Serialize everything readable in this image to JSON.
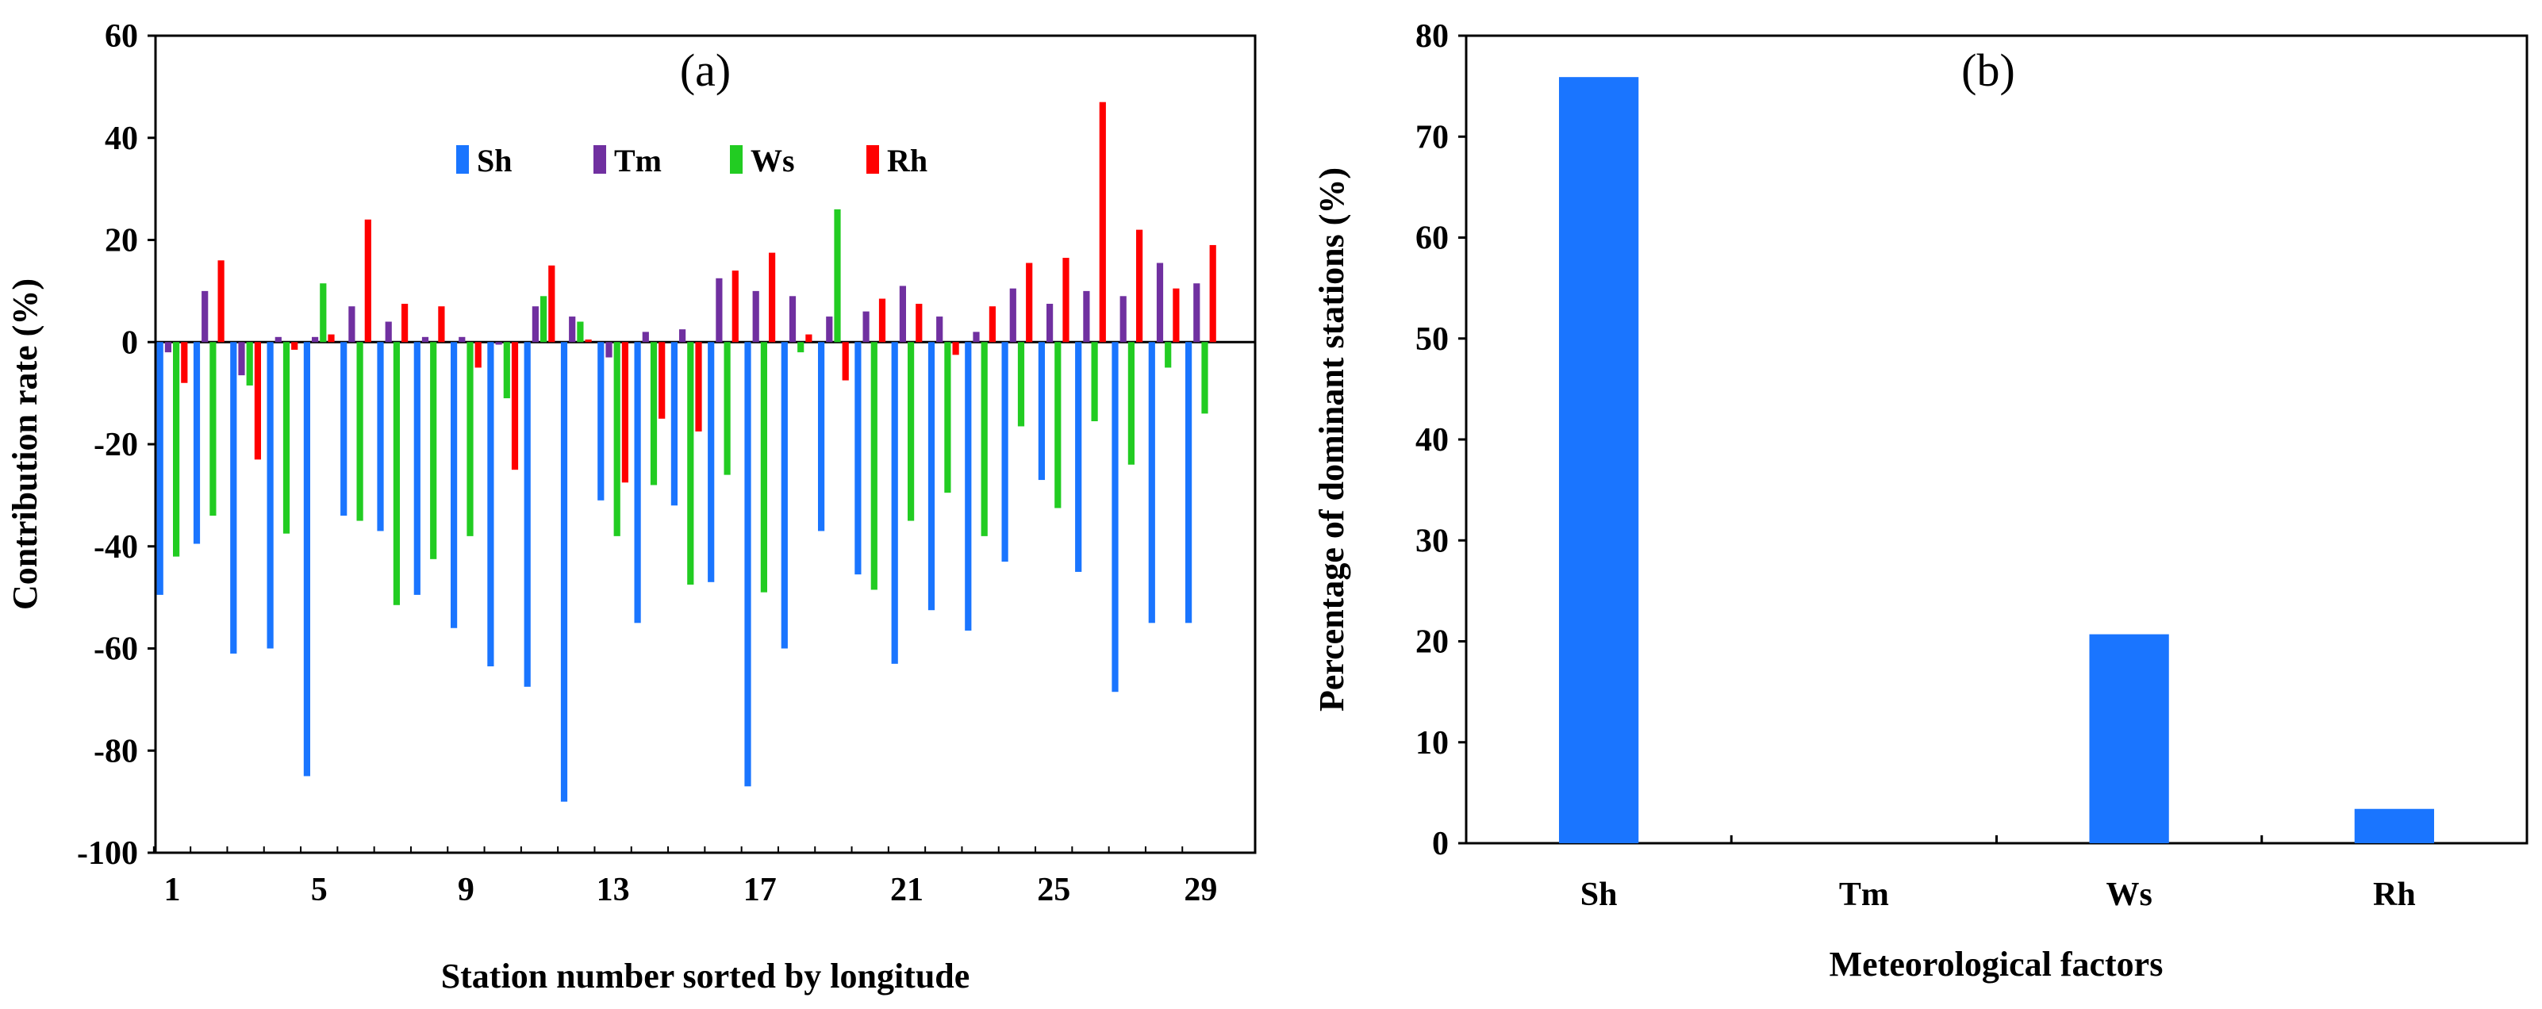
{
  "chart_data": [
    {
      "type": "bar",
      "panel_label": "(a)",
      "title": "",
      "xlabel": "Station number sorted by longitude",
      "ylabel": "Contribution rate (%)",
      "ylim": [
        -100,
        60
      ],
      "yticks": [
        60,
        40,
        20,
        0,
        -20,
        -40,
        -60,
        -80,
        -100
      ],
      "xtick_labels": [
        "1",
        "5",
        "9",
        "13",
        "17",
        "21",
        "25",
        "29"
      ],
      "xtick_stations": [
        1,
        5,
        9,
        13,
        17,
        21,
        25,
        29
      ],
      "categories": [
        1,
        2,
        3,
        4,
        5,
        6,
        7,
        8,
        9,
        10,
        11,
        12,
        13,
        14,
        15,
        16,
        17,
        18,
        19,
        20,
        21,
        22,
        23,
        24,
        25,
        26,
        27,
        28,
        29
      ],
      "legend_position": "top-center",
      "series": [
        {
          "name": "Sh",
          "color": "#1a75ff",
          "values": [
            -49.5,
            -39.5,
            -61,
            -60,
            -85,
            -34,
            -37,
            -49.5,
            -56,
            -63.5,
            -67.5,
            -90,
            -31,
            -55,
            -32,
            -47,
            -87,
            -60,
            -37,
            -45.5,
            -63,
            -52.5,
            -56.5,
            -43,
            -27,
            -45,
            -68.5,
            -55,
            -55
          ]
        },
        {
          "name": "Tm",
          "color": "#7030a0",
          "values": [
            -2,
            10,
            -6.5,
            1,
            1,
            7,
            4,
            1,
            1,
            -0.5,
            7,
            5,
            -3,
            2,
            2.5,
            12.5,
            10,
            9,
            5,
            6,
            11,
            5,
            2,
            10.5,
            7.5,
            10,
            9,
            15.5,
            11.5
          ]
        },
        {
          "name": "Ws",
          "color": "#22cc22",
          "values": [
            -42,
            -34,
            -8.5,
            -37.5,
            11.5,
            -35,
            -51.5,
            -42.5,
            -38,
            -11,
            9,
            4,
            -38,
            -28,
            -47.5,
            -26,
            -49,
            -2,
            26,
            -48.5,
            -35,
            -29.5,
            -38,
            -16.5,
            -32.5,
            -15.5,
            -24,
            -5,
            -14
          ]
        },
        {
          "name": "Rh",
          "color": "#ff0000",
          "values": [
            -8,
            16,
            -23,
            -1.5,
            1.5,
            24,
            7.5,
            7,
            -5,
            -25,
            15,
            0.5,
            -27.5,
            -15,
            -17.5,
            14,
            17.5,
            1.5,
            -7.5,
            8.5,
            7.5,
            -2.5,
            7,
            15.5,
            16.5,
            47,
            22,
            10.5,
            19
          ]
        }
      ]
    },
    {
      "type": "bar",
      "panel_label": "(b)",
      "title": "",
      "xlabel": "Meteorological factors",
      "ylabel": "Percentage of dominant stations (%)",
      "ylim": [
        0,
        80
      ],
      "yticks": [
        80,
        70,
        60,
        50,
        40,
        30,
        20,
        10,
        0
      ],
      "categories": [
        "Sh",
        "Tm",
        "Ws",
        "Rh"
      ],
      "values": [
        75.9,
        0,
        20.7,
        3.4
      ],
      "color": "#1a75ff"
    }
  ]
}
